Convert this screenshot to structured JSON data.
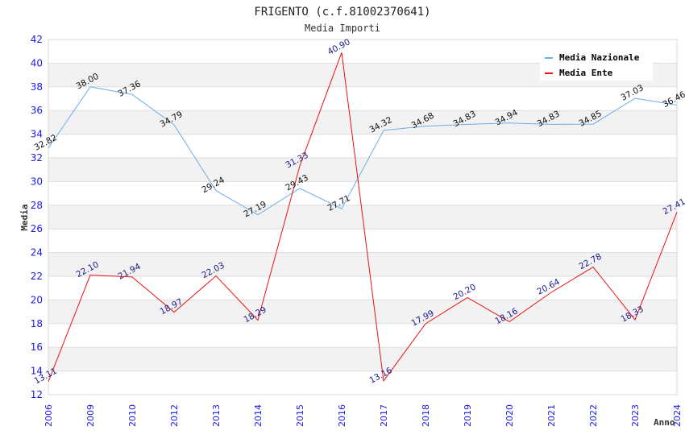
{
  "chart_data": {
    "type": "line",
    "title": "FRIGENTO (c.f.81002370641)",
    "subtitle": "Media Importi",
    "xlabel": "Anno",
    "ylabel": "Media",
    "ylim": [
      12,
      42
    ],
    "yticks": [
      "12",
      "14",
      "16",
      "18",
      "20",
      "22",
      "24",
      "26",
      "28",
      "30",
      "32",
      "34",
      "36",
      "38",
      "40",
      "42"
    ],
    "categories": [
      "2006",
      "2009",
      "2010",
      "2012",
      "2013",
      "2014",
      "2015",
      "2016",
      "2017",
      "2018",
      "2019",
      "2020",
      "2021",
      "2022",
      "2023",
      "2024"
    ],
    "grid": true,
    "legend_position": "top-right",
    "series": [
      {
        "name": "Media Nazionale",
        "color": "#6aaee8",
        "values": [
          32.82,
          38.0,
          37.36,
          34.79,
          29.24,
          27.19,
          29.43,
          27.71,
          34.32,
          34.68,
          34.83,
          34.94,
          34.83,
          34.85,
          37.03,
          36.46
        ],
        "labels": [
          "32.82",
          "38.00",
          "37.36",
          "34.79",
          "29.24",
          "27.19",
          "29.43",
          "27.71",
          "34.32",
          "34.68",
          "34.83",
          "34.94",
          "34.83",
          "34.85",
          "37.03",
          "36.46"
        ]
      },
      {
        "name": "Media Ente",
        "color": "#ee1111",
        "values": [
          13.11,
          22.1,
          21.94,
          18.97,
          22.03,
          18.29,
          31.33,
          40.9,
          13.16,
          17.99,
          20.2,
          18.16,
          20.64,
          22.78,
          18.33,
          27.41
        ],
        "labels": [
          "13.11",
          "22.10",
          "21.94",
          "18.97",
          "22.03",
          "18.29",
          "31.33",
          "40.90",
          "13.16",
          "17.99",
          "20.20",
          "18.16",
          "20.64",
          "22.78",
          "18.33",
          "27.41"
        ]
      }
    ]
  }
}
